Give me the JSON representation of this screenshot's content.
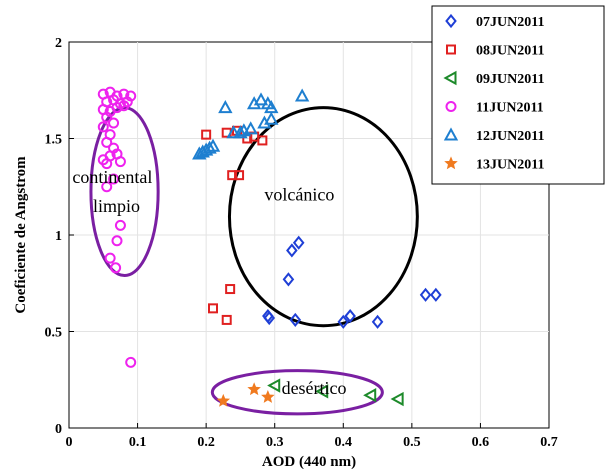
{
  "chart_data": {
    "type": "scatter",
    "xlabel": "AOD (440 nm)",
    "ylabel": "Coeficiente de Angstrom",
    "xlim": [
      0,
      0.7
    ],
    "ylim": [
      0,
      2
    ],
    "xticks": [
      "0",
      "0.1",
      "0.2",
      "0.3",
      "0.4",
      "0.5",
      "0.6",
      "0.7"
    ],
    "yticks": [
      "0",
      "0.5",
      "1",
      "1.5",
      "2"
    ],
    "grid": true,
    "legend_position": "top-right",
    "series": [
      {
        "name": "07JUN2011",
        "marker": "diamond",
        "color": "#1f3fd6",
        "points": [
          [
            0.32,
            0.77
          ],
          [
            0.325,
            0.92
          ],
          [
            0.335,
            0.96
          ],
          [
            0.29,
            0.58
          ],
          [
            0.292,
            0.57
          ],
          [
            0.33,
            0.56
          ],
          [
            0.4,
            0.55
          ],
          [
            0.41,
            0.58
          ],
          [
            0.45,
            0.55
          ],
          [
            0.52,
            0.69
          ],
          [
            0.535,
            0.69
          ]
        ]
      },
      {
        "name": "08JUN2011",
        "marker": "square",
        "color": "#e02020",
        "points": [
          [
            0.2,
            1.52
          ],
          [
            0.23,
            1.53
          ],
          [
            0.245,
            1.54
          ],
          [
            0.26,
            1.5
          ],
          [
            0.27,
            1.51
          ],
          [
            0.282,
            1.49
          ],
          [
            0.238,
            1.31
          ],
          [
            0.248,
            1.31
          ],
          [
            0.21,
            0.62
          ],
          [
            0.235,
            0.72
          ],
          [
            0.23,
            0.56
          ]
        ]
      },
      {
        "name": "09JUN2011",
        "marker": "triangle-left",
        "color": "#1d8a2a",
        "points": [
          [
            0.3,
            0.22
          ],
          [
            0.37,
            0.19
          ],
          [
            0.44,
            0.17
          ],
          [
            0.48,
            0.15
          ]
        ]
      },
      {
        "name": "11JUN2011",
        "marker": "circle",
        "color": "#ee22ee",
        "points": [
          [
            0.05,
            1.73
          ],
          [
            0.06,
            1.74
          ],
          [
            0.07,
            1.72
          ],
          [
            0.08,
            1.73
          ],
          [
            0.09,
            1.72
          ],
          [
            0.055,
            1.69
          ],
          [
            0.065,
            1.7
          ],
          [
            0.075,
            1.68
          ],
          [
            0.085,
            1.69
          ],
          [
            0.05,
            1.65
          ],
          [
            0.06,
            1.64
          ],
          [
            0.07,
            1.66
          ],
          [
            0.08,
            1.67
          ],
          [
            0.055,
            1.61
          ],
          [
            0.065,
            1.58
          ],
          [
            0.05,
            1.56
          ],
          [
            0.06,
            1.52
          ],
          [
            0.055,
            1.48
          ],
          [
            0.065,
            1.45
          ],
          [
            0.06,
            1.41
          ],
          [
            0.07,
            1.42
          ],
          [
            0.05,
            1.39
          ],
          [
            0.055,
            1.37
          ],
          [
            0.075,
            1.38
          ],
          [
            0.065,
            1.29
          ],
          [
            0.055,
            1.25
          ],
          [
            0.075,
            1.05
          ],
          [
            0.07,
            0.97
          ],
          [
            0.06,
            0.88
          ],
          [
            0.068,
            0.83
          ],
          [
            0.09,
            0.34
          ]
        ]
      },
      {
        "name": "12JUN2011",
        "marker": "triangle-up",
        "color": "#1e7fd0",
        "points": [
          [
            0.19,
            1.42
          ],
          [
            0.195,
            1.43
          ],
          [
            0.2,
            1.44
          ],
          [
            0.205,
            1.45
          ],
          [
            0.21,
            1.46
          ],
          [
            0.228,
            1.66
          ],
          [
            0.24,
            1.53
          ],
          [
            0.25,
            1.53
          ],
          [
            0.255,
            1.54
          ],
          [
            0.265,
            1.55
          ],
          [
            0.27,
            1.68
          ],
          [
            0.28,
            1.7
          ],
          [
            0.29,
            1.68
          ],
          [
            0.285,
            1.58
          ],
          [
            0.295,
            1.66
          ],
          [
            0.295,
            1.6
          ],
          [
            0.34,
            1.72
          ]
        ]
      },
      {
        "name": "13JUN2011",
        "marker": "pentagram",
        "color": "#f07a1f",
        "points": [
          [
            0.225,
            0.14
          ],
          [
            0.27,
            0.2
          ],
          [
            0.29,
            0.16
          ]
        ]
      }
    ],
    "annotations": [
      {
        "name": "continental",
        "text": "continental",
        "x": 0.005,
        "y": 1.27
      },
      {
        "name": "limpio",
        "text": "limpio",
        "x": 0.035,
        "y": 1.12
      },
      {
        "name": "volcanico",
        "text": "volcánico",
        "x": 0.285,
        "y": 1.18
      },
      {
        "name": "desertico",
        "text": "desértico",
        "x": 0.31,
        "y": 0.175
      }
    ],
    "regions": [
      {
        "name": "continental-limpio",
        "color": "#7a1fa2",
        "cx": 0.081,
        "cy": 1.225,
        "rx": 0.049,
        "ry": 0.435
      },
      {
        "name": "volcanico",
        "color": "#000000",
        "cx": 0.371,
        "cy": 1.095,
        "rx": 0.137,
        "ry": 0.565
      },
      {
        "name": "desertico",
        "color": "#7a1fa2",
        "cx": 0.333,
        "cy": 0.185,
        "rx": 0.124,
        "ry": 0.112
      }
    ]
  }
}
